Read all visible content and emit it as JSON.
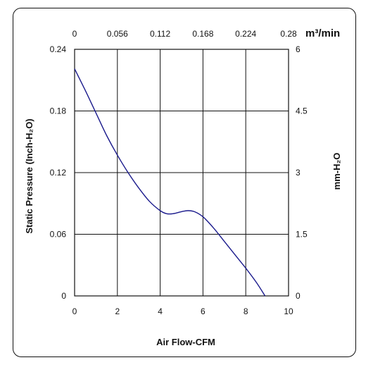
{
  "chart_data": {
    "type": "line",
    "xlabel": "Air Flow-CFM",
    "ylabel_left": "Static Pressure (Inch-H₂O)",
    "ylabel_right": "mm-H₂O",
    "x_top_unit": "m³/min",
    "x_ticks": [
      "0",
      "2",
      "4",
      "6",
      "8",
      "10"
    ],
    "x_top_ticks": [
      "0",
      "0.056",
      "0.112",
      "0.168",
      "0.224",
      "0.28"
    ],
    "y_left_ticks": [
      "0",
      "0.06",
      "0.12",
      "0.18",
      "0.24"
    ],
    "y_right_ticks": [
      "0",
      "1.5",
      "3",
      "4.5",
      "6"
    ],
    "xlim": [
      0,
      10
    ],
    "ylim": [
      0,
      0.24
    ],
    "grid": true,
    "line_color": "#1a1a8c",
    "series": [
      {
        "x": [
          0,
          0.5,
          1.0,
          1.5,
          2.0,
          2.5,
          3.0,
          3.5,
          4.0,
          4.3,
          4.6,
          5.0,
          5.3,
          5.6,
          6.0,
          6.5,
          7.0,
          7.5,
          8.0,
          8.5,
          8.9
        ],
        "y": [
          0.221,
          0.2,
          0.178,
          0.156,
          0.137,
          0.12,
          0.105,
          0.092,
          0.083,
          0.08,
          0.08,
          0.082,
          0.083,
          0.082,
          0.077,
          0.066,
          0.053,
          0.04,
          0.027,
          0.013,
          0.0
        ]
      }
    ]
  }
}
